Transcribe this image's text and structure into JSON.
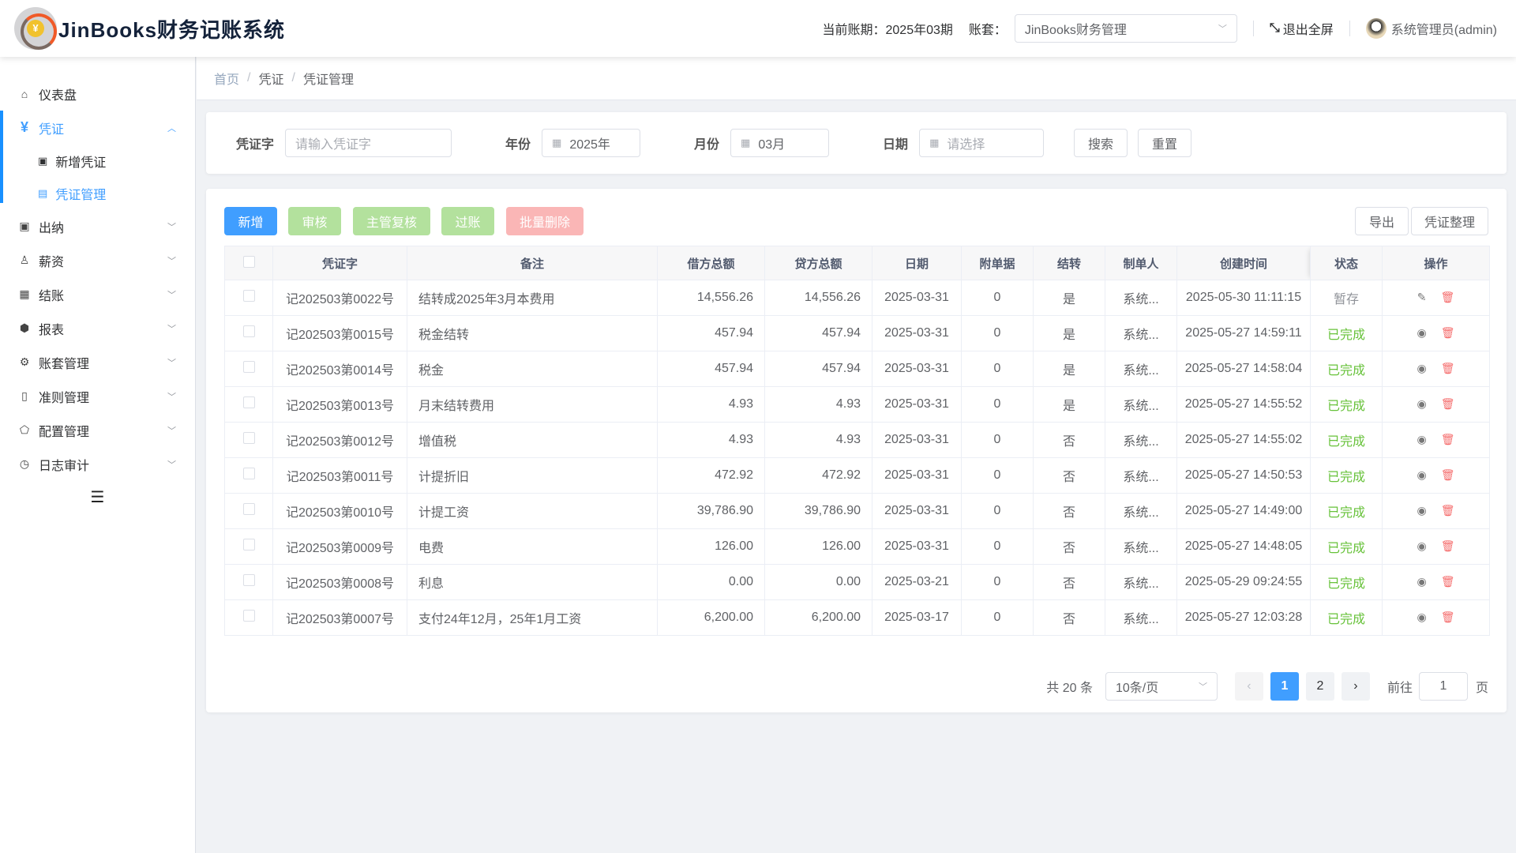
{
  "header": {
    "logo_text": "¥",
    "title": "JinBooks财务记账系统",
    "period_label": "当前账期：",
    "period_value": "2025年03期",
    "account_label": "账套：",
    "account_value": "JinBooks财务管理",
    "fullscreen_label": "退出全屏",
    "user": "系统管理员(admin)"
  },
  "sidebar": {
    "items": [
      {
        "label": "仪表盘",
        "icon": "⌂"
      },
      {
        "label": "凭证",
        "icon": "¥",
        "children": [
          {
            "label": "新增凭证",
            "icon": "▣"
          },
          {
            "label": "凭证管理",
            "icon": "▤"
          }
        ]
      },
      {
        "label": "出纳",
        "icon": "▣"
      },
      {
        "label": "薪资",
        "icon": "♙"
      },
      {
        "label": "结账",
        "icon": "▦"
      },
      {
        "label": "报表",
        "icon": "⬢"
      },
      {
        "label": "账套管理",
        "icon": "⚙"
      },
      {
        "label": "准则管理",
        "icon": "▯"
      },
      {
        "label": "配置管理",
        "icon": "⬠"
      },
      {
        "label": "日志审计",
        "icon": "◷"
      }
    ],
    "collapse_icon": "☰"
  },
  "breadcrumb": [
    "首页",
    "凭证",
    "凭证管理"
  ],
  "search": {
    "voucher_label": "凭证字",
    "voucher_placeholder": "请输入凭证字",
    "year_label": "年份",
    "year_value": "2025年",
    "month_label": "月份",
    "month_value": "03月",
    "date_label": "日期",
    "date_placeholder": "请选择",
    "search_btn": "搜索",
    "reset_btn": "重置"
  },
  "toolbar": {
    "add": "新增",
    "audit": "审核",
    "review": "主管复核",
    "post": "过账",
    "batch_delete": "批量删除",
    "export": "导出",
    "organize": "凭证整理"
  },
  "table": {
    "columns": [
      "凭证字",
      "备注",
      "借方总额",
      "贷方总额",
      "日期",
      "附单据",
      "结转",
      "制单人",
      "创建时间",
      "状态",
      "操作"
    ],
    "rows": [
      {
        "no": "记202503第0022号",
        "memo": "结转成2025年3月本费用",
        "debit": "14,556.26",
        "credit": "14,556.26",
        "date": "2025-03-31",
        "att": "0",
        "carry": "是",
        "maker": "系统...",
        "created": "2025-05-30 11:11:15",
        "status": "暂存",
        "status_type": "draft"
      },
      {
        "no": "记202503第0015号",
        "memo": "税金结转",
        "debit": "457.94",
        "credit": "457.94",
        "date": "2025-03-31",
        "att": "0",
        "carry": "是",
        "maker": "系统...",
        "created": "2025-05-27 14:59:11",
        "status": "已完成",
        "status_type": "ok"
      },
      {
        "no": "记202503第0014号",
        "memo": "税金",
        "debit": "457.94",
        "credit": "457.94",
        "date": "2025-03-31",
        "att": "0",
        "carry": "是",
        "maker": "系统...",
        "created": "2025-05-27 14:58:04",
        "status": "已完成",
        "status_type": "ok"
      },
      {
        "no": "记202503第0013号",
        "memo": "月末结转费用",
        "debit": "4.93",
        "credit": "4.93",
        "date": "2025-03-31",
        "att": "0",
        "carry": "是",
        "maker": "系统...",
        "created": "2025-05-27 14:55:52",
        "status": "已完成",
        "status_type": "ok"
      },
      {
        "no": "记202503第0012号",
        "memo": "增值税",
        "debit": "4.93",
        "credit": "4.93",
        "date": "2025-03-31",
        "att": "0",
        "carry": "否",
        "maker": "系统...",
        "created": "2025-05-27 14:55:02",
        "status": "已完成",
        "status_type": "ok"
      },
      {
        "no": "记202503第0011号",
        "memo": "计提折旧",
        "debit": "472.92",
        "credit": "472.92",
        "date": "2025-03-31",
        "att": "0",
        "carry": "否",
        "maker": "系统...",
        "created": "2025-05-27 14:50:53",
        "status": "已完成",
        "status_type": "ok"
      },
      {
        "no": "记202503第0010号",
        "memo": "计提工资",
        "debit": "39,786.90",
        "credit": "39,786.90",
        "date": "2025-03-31",
        "att": "0",
        "carry": "否",
        "maker": "系统...",
        "created": "2025-05-27 14:49:00",
        "status": "已完成",
        "status_type": "ok"
      },
      {
        "no": "记202503第0009号",
        "memo": "电费",
        "debit": "126.00",
        "credit": "126.00",
        "date": "2025-03-31",
        "att": "0",
        "carry": "否",
        "maker": "系统...",
        "created": "2025-05-27 14:48:05",
        "status": "已完成",
        "status_type": "ok"
      },
      {
        "no": "记202503第0008号",
        "memo": "利息",
        "debit": "0.00",
        "credit": "0.00",
        "date": "2025-03-21",
        "att": "0",
        "carry": "否",
        "maker": "系统...",
        "created": "2025-05-29 09:24:55",
        "status": "已完成",
        "status_type": "ok"
      },
      {
        "no": "记202503第0007号",
        "memo": "支付24年12月，25年1月工资",
        "debit": "6,200.00",
        "credit": "6,200.00",
        "date": "2025-03-17",
        "att": "0",
        "carry": "否",
        "maker": "系统...",
        "created": "2025-05-27 12:03:28",
        "status": "已完成",
        "status_type": "ok"
      }
    ]
  },
  "pagination": {
    "total": "共 20 条",
    "page_size": "10条/页",
    "pages": [
      "1",
      "2"
    ],
    "current": "1",
    "goto_label": "前往",
    "goto_value": "1",
    "page_suffix": "页"
  },
  "colors": {
    "primary": "#409eff",
    "success": "#67c23a",
    "danger": "#f56c6c",
    "audit_btn": "#b3e19d",
    "delete_btn": "#fab6b6"
  }
}
